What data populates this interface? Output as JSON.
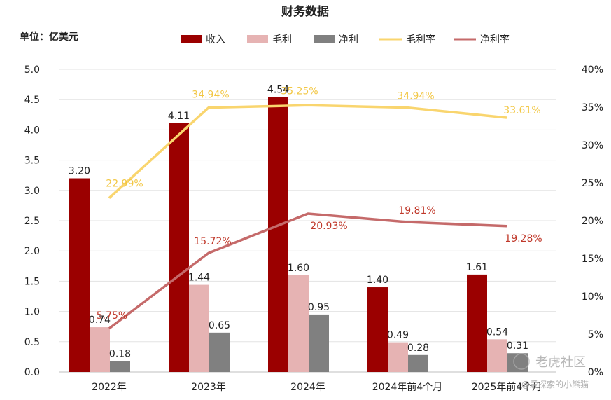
{
  "chart_data": {
    "type": "bar+line",
    "title": "财务数据",
    "unit_label": "单位：亿美元",
    "categories": [
      "2022年",
      "2023年",
      "2024年",
      "2024年前4个月",
      "2025年前4个月"
    ],
    "bar_series": [
      {
        "name": "收入",
        "color": "#9b0000",
        "values": [
          3.2,
          4.11,
          4.54,
          1.4,
          1.61
        ],
        "labels": [
          "3.20",
          "4.11",
          "4.54",
          "1.40",
          "1.61"
        ]
      },
      {
        "name": "毛利",
        "color": "#e6b3b3",
        "values": [
          0.74,
          1.44,
          1.6,
          0.49,
          0.54
        ],
        "labels": [
          "0.74",
          "1.44",
          "1.60",
          "0.49",
          "0.54"
        ]
      },
      {
        "name": "净利",
        "color": "#808080",
        "values": [
          0.18,
          0.65,
          0.95,
          0.28,
          0.31
        ],
        "labels": [
          "0.18",
          "0.65",
          "0.95",
          "0.28",
          "0.31"
        ]
      }
    ],
    "line_series": [
      {
        "name": "毛利率",
        "color": "#f9d56e",
        "label_color": "#f2c744",
        "values": [
          22.99,
          34.94,
          35.25,
          34.94,
          33.61
        ],
        "labels": [
          "22.99%",
          "34.94%",
          "35.25%",
          "34.94%",
          "33.61%"
        ]
      },
      {
        "name": "净利率",
        "color": "#c56a6a",
        "label_color": "#c0392b",
        "values": [
          5.75,
          15.72,
          20.93,
          19.81,
          19.28
        ],
        "labels": [
          "5.75%",
          "15.72%",
          "20.93%",
          "19.81%",
          "19.28%"
        ]
      }
    ],
    "y_left": {
      "min": 0,
      "max": 5.0,
      "step": 0.5,
      "ticks": [
        "0.0",
        "0.5",
        "1.0",
        "1.5",
        "2.0",
        "2.5",
        "3.0",
        "3.5",
        "4.0",
        "4.5",
        "5.0"
      ]
    },
    "y_right": {
      "min": 0,
      "max": 40,
      "step": 5,
      "ticks": [
        "0%",
        "5%",
        "10%",
        "15%",
        "20%",
        "25%",
        "30%",
        "35%",
        "40%"
      ]
    },
    "grid": true,
    "legend_position": "top"
  },
  "watermark": {
    "brand": "老虎社区",
    "user": "@爱探索的小熊猫"
  }
}
